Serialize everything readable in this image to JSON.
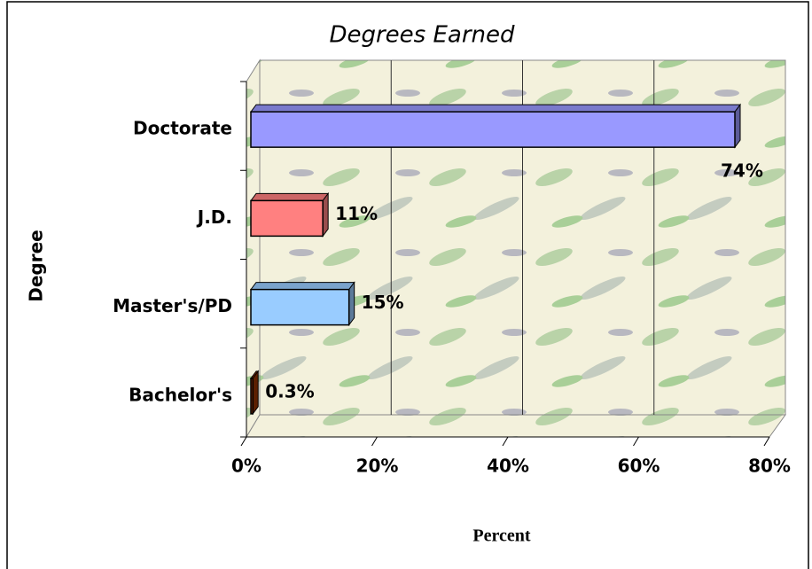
{
  "chart_data": {
    "type": "bar",
    "orientation": "horizontal",
    "title": "Degrees Earned",
    "x_label": "Percent",
    "y_label": "Degree",
    "categories": [
      "Doctorate",
      "J.D.",
      "Master's/PD",
      "Bachelor's"
    ],
    "values": [
      74,
      11,
      15,
      0.3
    ],
    "value_labels": [
      "74%",
      "11%",
      "15%",
      "0.3%"
    ],
    "colors": [
      "#9999ff",
      "#ff8080",
      "#99ccff",
      "#993300"
    ],
    "xlim": [
      0,
      80
    ],
    "xticks": [
      {
        "value": 0,
        "label": "0%"
      },
      {
        "value": 20,
        "label": "20%"
      },
      {
        "value": 40,
        "label": "40%"
      },
      {
        "value": 60,
        "label": "60%"
      },
      {
        "value": 80,
        "label": "80%"
      }
    ],
    "grid": true
  }
}
